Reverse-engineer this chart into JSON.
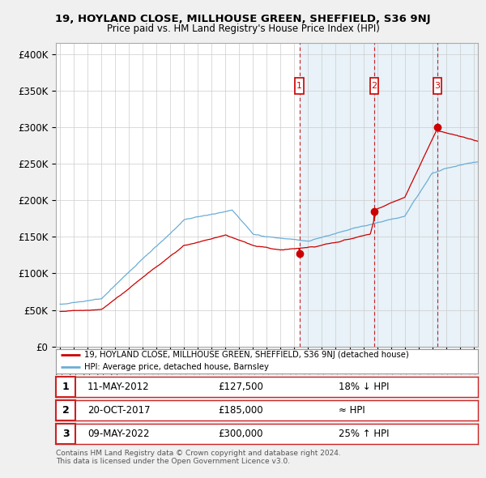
{
  "title": "19, HOYLAND CLOSE, MILLHOUSE GREEN, SHEFFIELD, S36 9NJ",
  "subtitle": "Price paid vs. HM Land Registry's House Price Index (HPI)",
  "ylabel_ticks": [
    "£0",
    "£50K",
    "£100K",
    "£150K",
    "£200K",
    "£250K",
    "£300K",
    "£350K",
    "£400K"
  ],
  "ylabel_values": [
    0,
    50000,
    100000,
    150000,
    200000,
    250000,
    300000,
    350000,
    400000
  ],
  "ylim": [
    0,
    415000
  ],
  "xlim_start": 1994.7,
  "xlim_end": 2025.3,
  "sale_dates_year": [
    2012.36,
    2017.8,
    2022.36
  ],
  "sale_prices": [
    127500,
    185000,
    300000
  ],
  "sale_labels": [
    "1",
    "2",
    "3"
  ],
  "sale_date_strings": [
    "11-MAY-2012",
    "20-OCT-2017",
    "09-MAY-2022"
  ],
  "sale_price_strings": [
    "£127,500",
    "£185,000",
    "£300,000"
  ],
  "sale_relation": [
    "18% ↓ HPI",
    "≈ HPI",
    "25% ↑ HPI"
  ],
  "red_line_color": "#cc0000",
  "blue_line_color": "#6baed6",
  "shade_color": "#ddeeff",
  "background_color": "#f0f0f0",
  "plot_bg_color": "#ffffff",
  "grid_color": "#cccccc",
  "legend_label_red": "19, HOYLAND CLOSE, MILLHOUSE GREEN, SHEFFIELD, S36 9NJ (detached house)",
  "legend_label_blue": "HPI: Average price, detached house, Barnsley",
  "footer_text": "Contains HM Land Registry data © Crown copyright and database right 2024.\nThis data is licensed under the Open Government Licence v3.0."
}
